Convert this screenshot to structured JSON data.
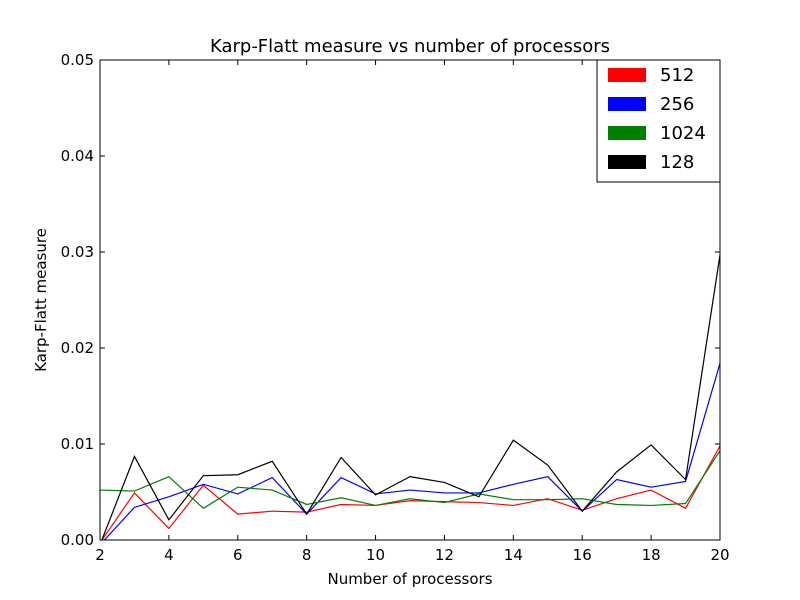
{
  "chart_data": {
    "type": "line",
    "title": "Karp-Flatt measure vs number of processors",
    "xlabel": "Number of processors",
    "ylabel": "Karp-Flatt measure",
    "xlim": [
      2,
      20
    ],
    "ylim": [
      0,
      0.05
    ],
    "x_ticks": [
      "2",
      "4",
      "6",
      "8",
      "10",
      "12",
      "14",
      "16",
      "18",
      "20"
    ],
    "y_ticks": [
      "0.00",
      "0.01",
      "0.02",
      "0.03",
      "0.04",
      "0.05"
    ],
    "grid": false,
    "legend_position": "top-right",
    "x": [
      2,
      3,
      4,
      5,
      6,
      7,
      8,
      9,
      10,
      11,
      12,
      13,
      14,
      15,
      16,
      17,
      18,
      19,
      20
    ],
    "series": [
      {
        "name": "512",
        "color": "#ff0000",
        "values": [
          -0.0003,
          0.0049,
          0.0012,
          0.0057,
          0.0027,
          0.003,
          0.0029,
          0.0037,
          0.0036,
          0.0041,
          0.004,
          0.0039,
          0.0036,
          0.0043,
          0.0031,
          0.0043,
          0.0052,
          0.0033,
          0.0098
        ]
      },
      {
        "name": "256",
        "color": "#0000ff",
        "values": [
          -0.0005,
          0.0034,
          0.0045,
          0.0058,
          0.0048,
          0.0065,
          0.0027,
          0.0065,
          0.0048,
          0.0052,
          0.0049,
          0.0049,
          0.0058,
          0.0066,
          0.003,
          0.0063,
          0.0055,
          0.0061,
          0.0184
        ]
      },
      {
        "name": "1024",
        "color": "#008000",
        "values": [
          0.0052,
          0.0051,
          0.0066,
          0.0033,
          0.0055,
          0.0052,
          0.0037,
          0.0044,
          0.0036,
          0.0043,
          0.0039,
          0.0048,
          0.0042,
          0.0042,
          0.0043,
          0.0037,
          0.0036,
          0.0038,
          0.0093
        ]
      },
      {
        "name": "128",
        "color": "#000000",
        "values": [
          -0.0005,
          0.0087,
          0.0021,
          0.0067,
          0.0068,
          0.0082,
          0.0027,
          0.0086,
          0.0047,
          0.0066,
          0.006,
          0.0045,
          0.0104,
          0.0078,
          0.003,
          0.0071,
          0.0099,
          0.0063,
          0.0297
        ]
      }
    ]
  }
}
